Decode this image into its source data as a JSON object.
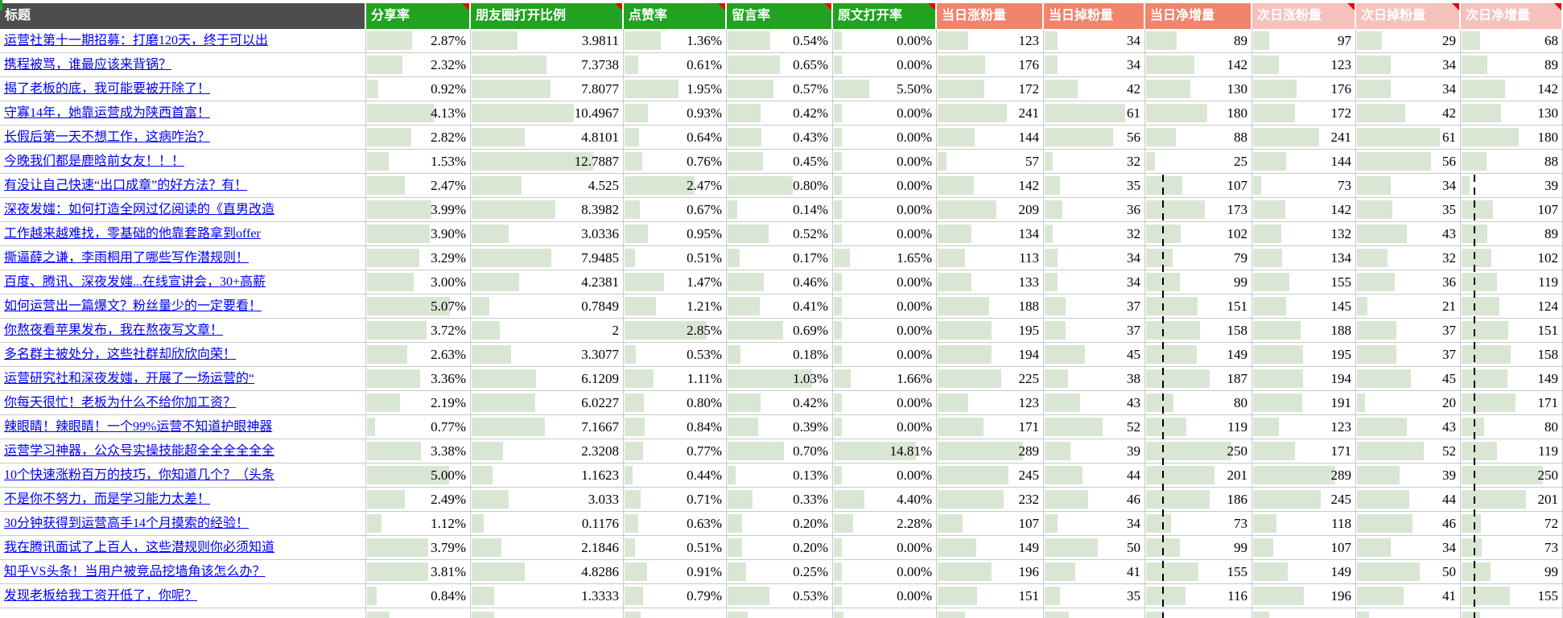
{
  "sheet": {
    "title_header": "标题",
    "columns": [
      {
        "label": "分享率",
        "group": "green",
        "comment_flag": true
      },
      {
        "label": "朋友圈打开比例",
        "group": "green",
        "comment_flag": true
      },
      {
        "label": "点赞率",
        "group": "green",
        "comment_flag": true
      },
      {
        "label": "留言率",
        "group": "green",
        "comment_flag": true
      },
      {
        "label": "原文打开率",
        "group": "green",
        "comment_flag": true
      },
      {
        "label": "当日涨粉量",
        "group": "salmon",
        "comment_flag": false
      },
      {
        "label": "当日掉粉量",
        "group": "salmon",
        "comment_flag": false
      },
      {
        "label": "当日净增量",
        "group": "salmon",
        "comment_flag": false
      },
      {
        "label": "次日涨粉量",
        "group": "pink",
        "comment_flag": true
      },
      {
        "label": "次日掉粉量",
        "group": "pink",
        "comment_flag": true
      },
      {
        "label": "次日净增量",
        "group": "pink",
        "comment_flag": true
      }
    ],
    "rows": [
      {
        "title": "运营社第十一期招募：打磨120天，终于可以出",
        "values": [
          "2.87%",
          "3.9811",
          "1.36%",
          "0.54%",
          "0.00%",
          "123",
          "34",
          "89",
          "97",
          "29",
          "68"
        ]
      },
      {
        "title": "携程被骂，谁最应该来背锅？",
        "values": [
          "2.32%",
          "7.3738",
          "0.61%",
          "0.65%",
          "0.00%",
          "176",
          "34",
          "142",
          "123",
          "34",
          "89"
        ]
      },
      {
        "title": "揭了老板的底，我可能要被开除了！",
        "values": [
          "0.92%",
          "7.8077",
          "1.95%",
          "0.57%",
          "5.50%",
          "172",
          "42",
          "130",
          "176",
          "34",
          "142"
        ]
      },
      {
        "title": "守寡14年，她靠运营成为陕西首富！",
        "values": [
          "4.13%",
          "10.4967",
          "0.93%",
          "0.42%",
          "0.00%",
          "241",
          "61",
          "180",
          "172",
          "42",
          "130"
        ]
      },
      {
        "title": "长假后第一天不想工作，这病咋治？",
        "values": [
          "2.82%",
          "4.8101",
          "0.64%",
          "0.43%",
          "0.00%",
          "144",
          "56",
          "88",
          "241",
          "61",
          "180"
        ]
      },
      {
        "title": "今晚我们都是鹿晗前女友！！！",
        "values": [
          "1.53%",
          "12.7887",
          "0.76%",
          "0.45%",
          "0.00%",
          "57",
          "32",
          "25",
          "144",
          "56",
          "88"
        ]
      },
      {
        "title": "有没让自己快速“出口成章”的好方法？有！",
        "values": [
          "2.47%",
          "4.525",
          "2.47%",
          "0.80%",
          "0.00%",
          "142",
          "35",
          "107",
          "73",
          "34",
          "39"
        ]
      },
      {
        "title": "深夜发媸：如何打造全网过亿阅读的《直男改造",
        "values": [
          "3.99%",
          "8.3982",
          "0.67%",
          "0.14%",
          "0.00%",
          "209",
          "36",
          "173",
          "142",
          "35",
          "107"
        ]
      },
      {
        "title": "工作越来越难找，零基础的他靠套路拿到offer",
        "values": [
          "3.90%",
          "3.0336",
          "0.95%",
          "0.52%",
          "0.00%",
          "134",
          "32",
          "102",
          "132",
          "43",
          "89"
        ]
      },
      {
        "title": "撕逼薛之谦，李雨桐用了哪些写作潜规则！",
        "values": [
          "3.29%",
          "7.9485",
          "0.51%",
          "0.17%",
          "1.65%",
          "113",
          "34",
          "79",
          "134",
          "32",
          "102"
        ]
      },
      {
        "title": "百度、腾讯、深夜发媸...在线宣讲会，30+高薪",
        "values": [
          "3.00%",
          "4.2381",
          "1.47%",
          "0.46%",
          "0.00%",
          "133",
          "34",
          "99",
          "155",
          "36",
          "119"
        ]
      },
      {
        "title": "如何运营出一篇爆文？粉丝量少的一定要看！",
        "values": [
          "5.07%",
          "0.7849",
          "1.21%",
          "0.41%",
          "0.00%",
          "188",
          "37",
          "151",
          "145",
          "21",
          "124"
        ]
      },
      {
        "title": "你熬夜看苹果发布，我在熬夜写文章！",
        "values": [
          "3.72%",
          "2",
          "2.85%",
          "0.69%",
          "0.00%",
          "195",
          "37",
          "158",
          "188",
          "37",
          "151"
        ]
      },
      {
        "title": "多名群主被处分，这些社群却欣欣向荣！",
        "values": [
          "2.63%",
          "3.3077",
          "0.53%",
          "0.18%",
          "0.00%",
          "194",
          "45",
          "149",
          "195",
          "37",
          "158"
        ]
      },
      {
        "title": "运营研究社和深夜发媸，开展了一场运营的“",
        "values": [
          "3.36%",
          "6.1209",
          "1.11%",
          "1.03%",
          "1.66%",
          "225",
          "38",
          "187",
          "194",
          "45",
          "149"
        ]
      },
      {
        "title": "你每天很忙！老板为什么不给你加工资？",
        "values": [
          "2.19%",
          "6.0227",
          "0.80%",
          "0.42%",
          "0.00%",
          "123",
          "43",
          "80",
          "191",
          "20",
          "171"
        ]
      },
      {
        "title": "辣眼睛！辣眼睛！一个99%运营不知道护眼神器",
        "values": [
          "0.77%",
          "7.1667",
          "0.84%",
          "0.39%",
          "0.00%",
          "171",
          "52",
          "119",
          "123",
          "43",
          "80"
        ]
      },
      {
        "title": "运营学习神器，公众号实操技能超全全全全全全",
        "values": [
          "3.38%",
          "2.3208",
          "0.77%",
          "0.70%",
          "14.81%",
          "289",
          "39",
          "250",
          "171",
          "52",
          "119"
        ]
      },
      {
        "title": "10个快速涨粉百万的技巧，你知道几个？（头条",
        "values": [
          "5.00%",
          "1.1623",
          "0.44%",
          "0.13%",
          "0.00%",
          "245",
          "44",
          "201",
          "289",
          "39",
          "250"
        ]
      },
      {
        "title": "不是你不努力，而是学习能力太差！",
        "values": [
          "2.49%",
          "3.033",
          "0.71%",
          "0.33%",
          "4.40%",
          "232",
          "46",
          "186",
          "245",
          "44",
          "201"
        ]
      },
      {
        "title": "30分钟获得到运营高手14个月摸索的经验！",
        "values": [
          "1.12%",
          "0.1176",
          "0.63%",
          "0.20%",
          "2.28%",
          "107",
          "34",
          "73",
          "118",
          "46",
          "72"
        ]
      },
      {
        "title": "我在腾讯面试了上百人，这些潜规则你必须知道",
        "values": [
          "3.79%",
          "2.1846",
          "0.51%",
          "0.20%",
          "0.00%",
          "149",
          "50",
          "99",
          "107",
          "34",
          "73"
        ]
      },
      {
        "title": "知乎VS头条！当用户被竞品挖墙角该怎么办？",
        "values": [
          "3.81%",
          "4.8286",
          "0.91%",
          "0.25%",
          "0.00%",
          "196",
          "41",
          "155",
          "149",
          "50",
          "99"
        ]
      },
      {
        "title": "发现老板给我工资开低了，你呢？",
        "values": [
          "0.84%",
          "1.3333",
          "0.79%",
          "0.53%",
          "0.00%",
          "151",
          "35",
          "116",
          "196",
          "41",
          "155"
        ]
      }
    ],
    "partial_row_bar_widths_pct": [
      22,
      15,
      16,
      19,
      9,
      26,
      24,
      15,
      16,
      12,
      18
    ]
  },
  "colors": {
    "header_dark": "#4D4D4D",
    "header_green": "#21A321",
    "header_salmon": "#F0846D",
    "header_pink": "#F5C2BB",
    "comment_red": "#E80000",
    "data_bar": "#D9E6D4",
    "grid_line": "#C8C8C8",
    "link_blue": "#0000FF"
  }
}
